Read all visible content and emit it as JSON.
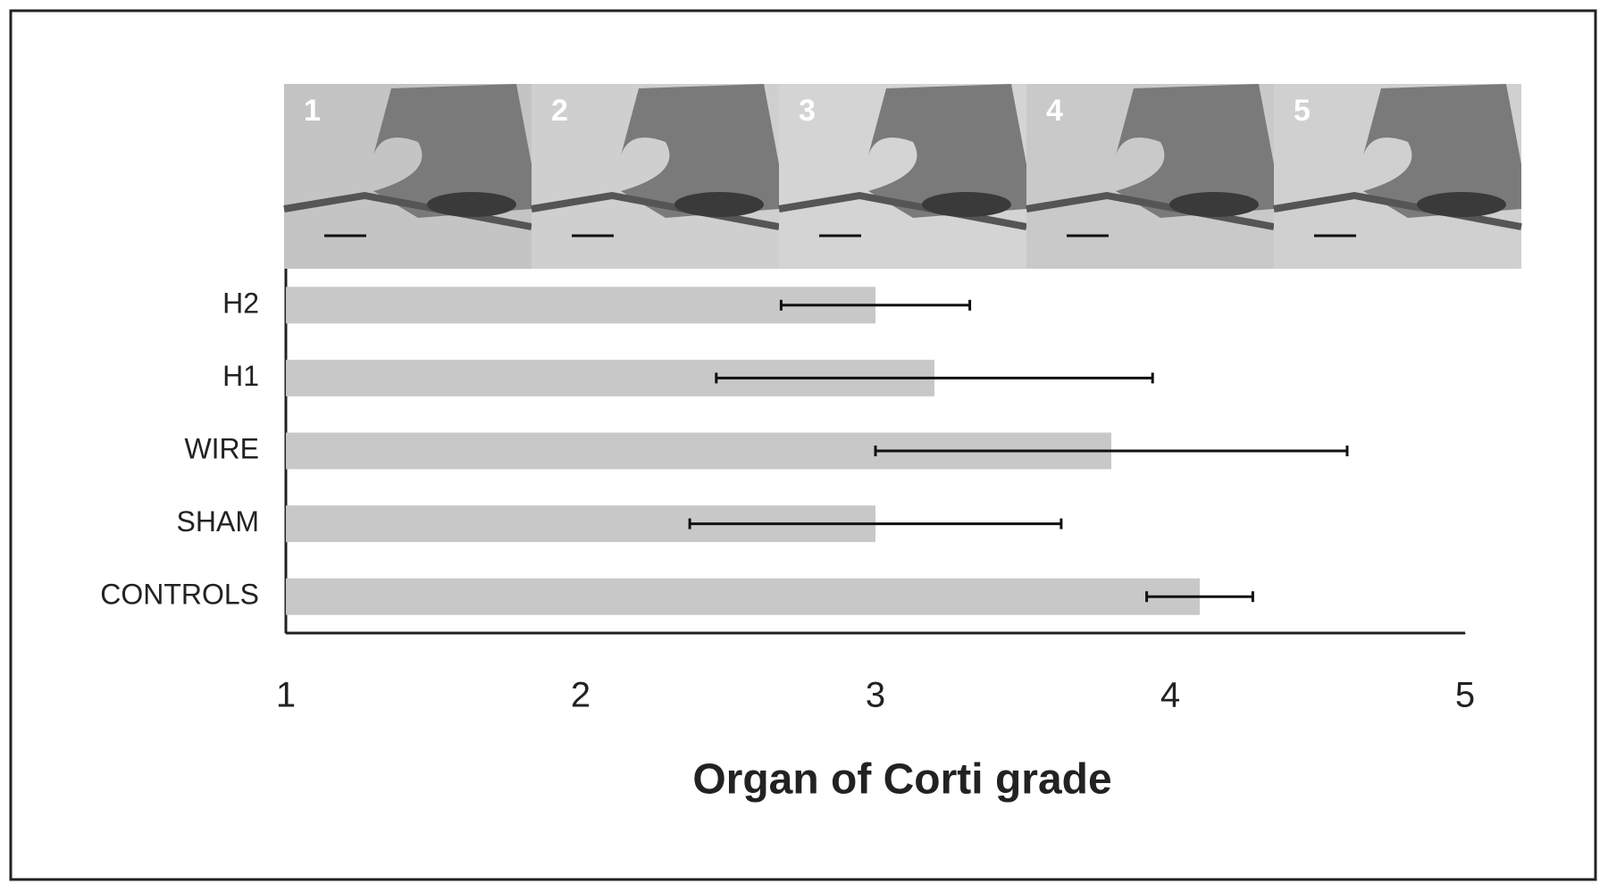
{
  "chart_data": {
    "type": "bar",
    "orientation": "horizontal",
    "panel_labels": [
      "1",
      "2",
      "3",
      "4",
      "5"
    ],
    "categories": [
      "H2",
      "H1",
      "WIRE",
      "SHAM",
      "CONTROLS"
    ],
    "values": [
      3.0,
      3.2,
      3.8,
      3.0,
      4.1
    ],
    "errors": [
      0.32,
      0.74,
      0.8,
      0.63,
      0.18
    ],
    "color": "#c8c8c8",
    "error_color": "#111111",
    "xlabel": "Organ of Corti grade",
    "xlim": [
      1,
      5
    ],
    "xticks": [
      1,
      2,
      3,
      4,
      5
    ],
    "grid": false
  }
}
